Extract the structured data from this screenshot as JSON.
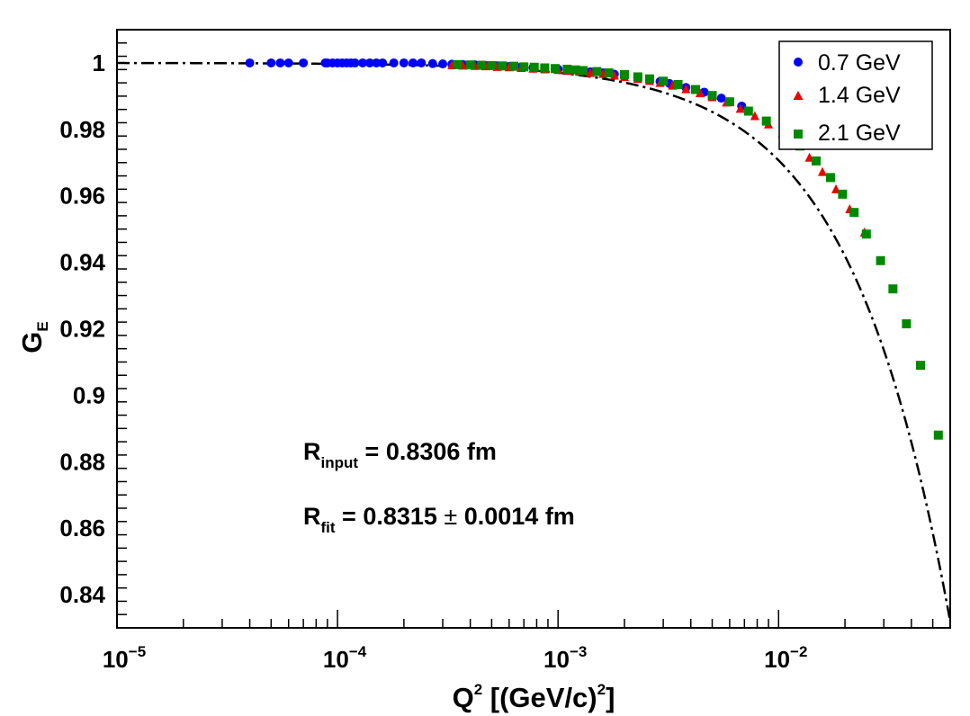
{
  "chart_data": {
    "type": "scatter",
    "xscale": "log",
    "xlim": [
      1e-05,
      0.06
    ],
    "ylim": [
      0.83,
      1.01
    ],
    "xlabel": {
      "main": "Q",
      "sup": "2",
      "rest": " [(GeV/c)",
      "sup2": "2",
      "close": "]"
    },
    "ylabel": {
      "main": "G",
      "sub": "E"
    },
    "x_ticks": [
      {
        "value": 1e-05,
        "base": "10",
        "exp": "−5"
      },
      {
        "value": 0.0001,
        "base": "10",
        "exp": "−4"
      },
      {
        "value": 0.001,
        "base": "10",
        "exp": "−3"
      },
      {
        "value": 0.01,
        "base": "10",
        "exp": "−2"
      }
    ],
    "y_ticks": [
      {
        "value": 0.84,
        "label": "0.84"
      },
      {
        "value": 0.86,
        "label": "0.86"
      },
      {
        "value": 0.88,
        "label": "0.88"
      },
      {
        "value": 0.9,
        "label": "0.9"
      },
      {
        "value": 0.92,
        "label": "0.92"
      },
      {
        "value": 0.94,
        "label": "0.94"
      },
      {
        "value": 0.96,
        "label": "0.96"
      },
      {
        "value": 0.98,
        "label": "0.98"
      },
      {
        "value": 1.0,
        "label": "1"
      }
    ],
    "legend_position": "top-right",
    "series": [
      {
        "name": "0.7 GeV",
        "color": "#0000ff",
        "marker": "circle",
        "x": [
          4e-05,
          5e-05,
          5.5e-05,
          6e-05,
          7e-05,
          8.8e-05,
          9e-05,
          9.5e-05,
          0.0001,
          0.000105,
          0.00011,
          0.000115,
          0.00012,
          0.00013,
          0.00014,
          0.00015,
          0.00016,
          0.00018,
          0.0002,
          0.00022,
          0.00024,
          0.00027,
          0.0003,
          0.00033,
          0.00037,
          0.00042,
          0.00047,
          0.00053,
          0.0006,
          0.00068,
          0.00077,
          0.00087,
          0.001,
          0.00112,
          0.00125,
          0.0014,
          0.0016,
          0.0018,
          0.002,
          0.0023,
          0.0026,
          0.0029,
          0.0032,
          0.0038,
          0.0046,
          0.0055,
          0.0068
        ],
        "y": [
          1.0,
          1.0,
          1.0,
          1.0,
          1.0,
          1.0,
          1.0,
          1.0,
          1.0,
          1.0,
          1.0,
          1.0,
          1.0,
          1.0,
          1.0,
          1.0,
          1.0,
          1.0,
          1.0,
          1.0,
          1.0,
          0.9998,
          0.9997,
          0.9996,
          0.9995,
          0.9994,
          0.9992,
          0.9991,
          0.9989,
          0.9988,
          0.9986,
          0.9984,
          0.9981,
          0.9979,
          0.9976,
          0.9973,
          0.997,
          0.9966,
          0.9962,
          0.9956,
          0.995,
          0.9944,
          0.9938,
          0.9926,
          0.9912,
          0.9894,
          0.987
        ]
      },
      {
        "name": "1.4 GeV",
        "color": "#ee0000",
        "marker": "triangle",
        "x": [
          0.00033,
          0.00037,
          0.00042,
          0.00047,
          0.00053,
          0.0006,
          0.00068,
          0.00077,
          0.00087,
          0.001,
          0.00112,
          0.00125,
          0.0014,
          0.0016,
          0.0018,
          0.002,
          0.0023,
          0.0026,
          0.0029,
          0.0033,
          0.0038,
          0.0044,
          0.005,
          0.0058,
          0.0067,
          0.0078,
          0.009,
          0.0104,
          0.012,
          0.0138,
          0.0158,
          0.0182,
          0.021,
          0.0245
        ],
        "y": [
          0.9993,
          0.9992,
          0.9991,
          0.999,
          0.9988,
          0.9987,
          0.9985,
          0.9983,
          0.9981,
          0.9979,
          0.9976,
          0.9974,
          0.997,
          0.9967,
          0.9962,
          0.9958,
          0.9952,
          0.9946,
          0.994,
          0.9932,
          0.9921,
          0.9909,
          0.9897,
          0.9881,
          0.9862,
          0.984,
          0.9815,
          0.9787,
          0.9753,
          0.9715,
          0.9672,
          0.962,
          0.956,
          0.949
        ]
      },
      {
        "name": "2.1 GeV",
        "color": "#008800",
        "marker": "square",
        "x": [
          0.00035,
          0.0004,
          0.00045,
          0.0005,
          0.00056,
          0.00063,
          0.0007,
          0.00078,
          0.00087,
          0.00097,
          0.0011,
          0.0012,
          0.0013,
          0.0015,
          0.0017,
          0.002,
          0.0023,
          0.0026,
          0.003,
          0.0035,
          0.0042,
          0.005,
          0.006,
          0.0073,
          0.0088,
          0.0105,
          0.0125,
          0.0148,
          0.0172,
          0.0195,
          0.022,
          0.025,
          0.029,
          0.033,
          0.038,
          0.044,
          0.053
        ],
        "y": [
          0.9995,
          0.9994,
          0.9993,
          0.9992,
          0.9991,
          0.999,
          0.9988,
          0.9987,
          0.9985,
          0.9983,
          0.9981,
          0.9979,
          0.9977,
          0.9974,
          0.997,
          0.9965,
          0.9958,
          0.9952,
          0.9945,
          0.9935,
          0.992,
          0.9902,
          0.9883,
          0.9855,
          0.9825,
          0.979,
          0.975,
          0.9705,
          0.9655,
          0.9605,
          0.955,
          0.9485,
          0.9405,
          0.932,
          0.9215,
          0.909,
          0.888
        ]
      }
    ],
    "fit_curve": {
      "style": "dash-dot",
      "color": "#000000",
      "radius_fm": 0.8315
    },
    "annotations": [
      {
        "main": "R",
        "sub": "input",
        "text": " = 0.8306 fm"
      },
      {
        "main": "R",
        "sub": "fit",
        "text": " = 0.8315 ",
        "pm": "±",
        "tail": " 0.0014 fm"
      }
    ]
  }
}
